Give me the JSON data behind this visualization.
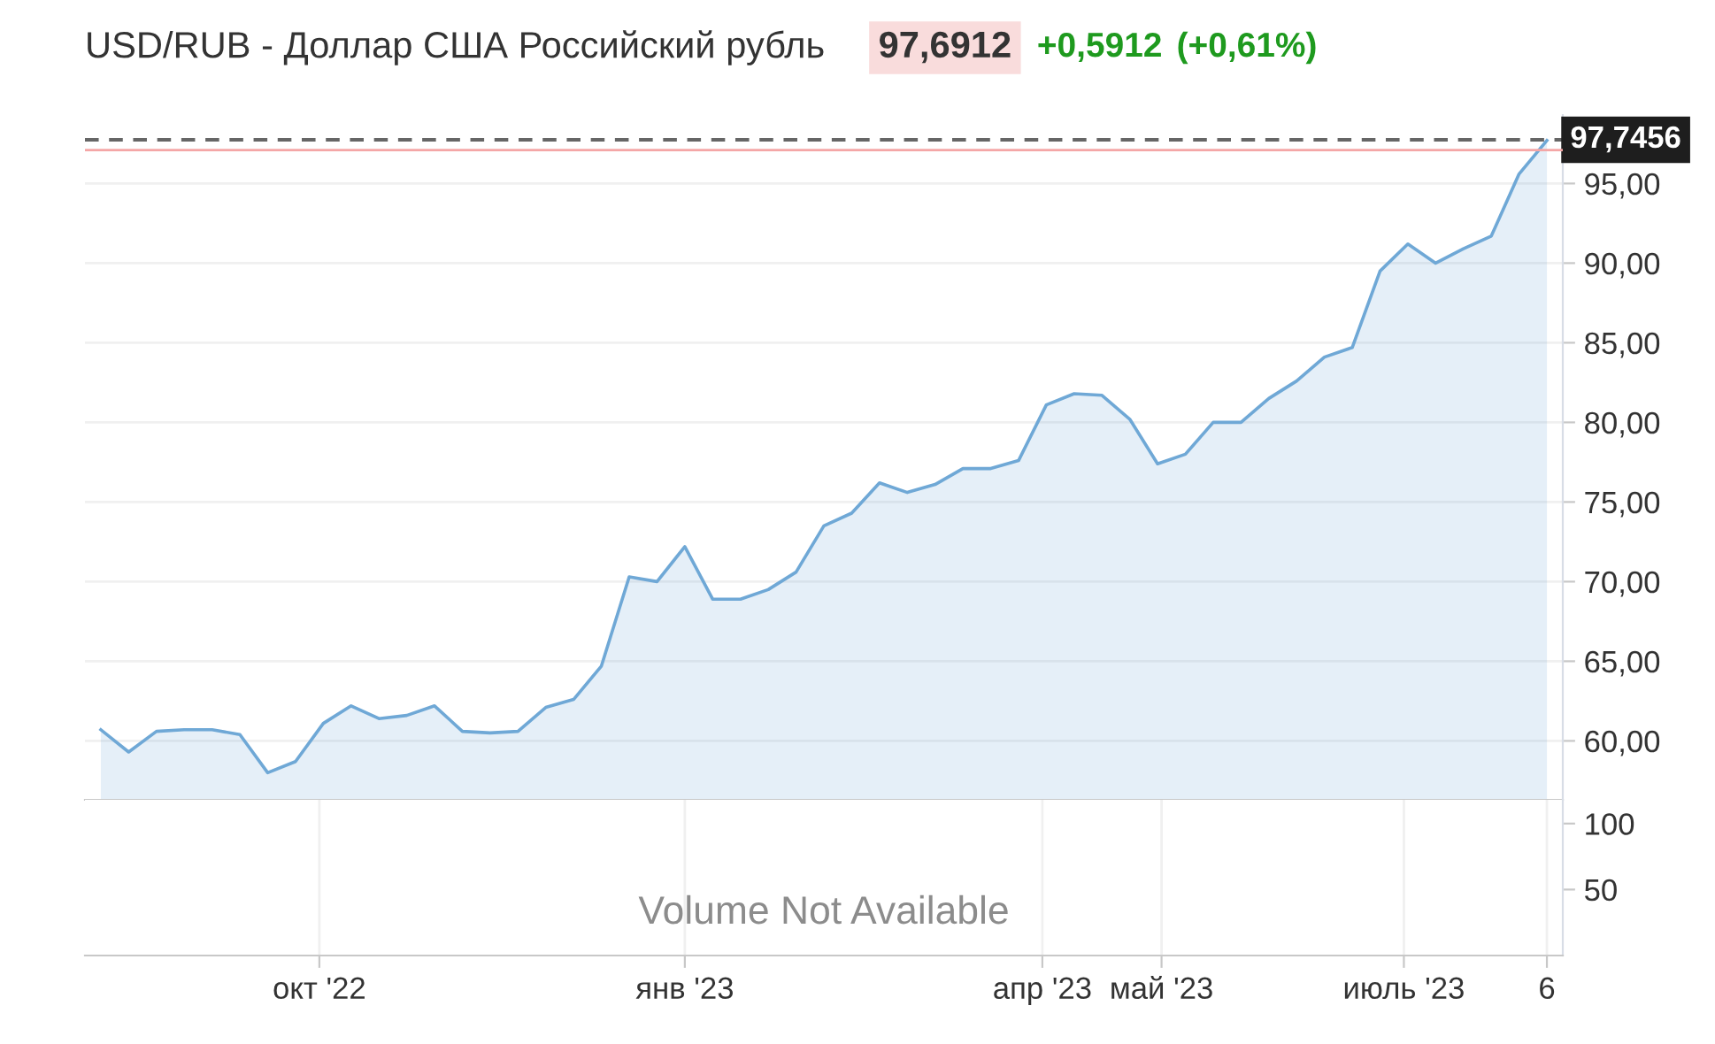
{
  "chart_data": [
    {
      "type": "area",
      "title": "USD/RUB - Доллар США Российский рубль",
      "annotations": [
        "97,6912",
        "+0,5912",
        "(+0,61%)"
      ],
      "x": [
        "2022-08-07",
        "2022-08-14",
        "2022-08-21",
        "2022-08-28",
        "2022-09-04",
        "2022-09-11",
        "2022-09-18",
        "2022-09-25",
        "2022-10-02",
        "2022-10-09",
        "2022-10-16",
        "2022-10-23",
        "2022-10-30",
        "2022-11-06",
        "2022-11-13",
        "2022-11-20",
        "2022-11-27",
        "2022-12-04",
        "2022-12-11",
        "2022-12-18",
        "2022-12-25",
        "2023-01-01",
        "2023-01-08",
        "2023-01-15",
        "2023-01-22",
        "2023-01-29",
        "2023-02-05",
        "2023-02-12",
        "2023-02-19",
        "2023-02-26",
        "2023-03-05",
        "2023-03-12",
        "2023-03-19",
        "2023-03-26",
        "2023-04-02",
        "2023-04-09",
        "2023-04-16",
        "2023-04-23",
        "2023-04-30",
        "2023-05-07",
        "2023-05-14",
        "2023-05-21",
        "2023-05-28",
        "2023-06-04",
        "2023-06-11",
        "2023-06-18",
        "2023-06-25",
        "2023-07-02",
        "2023-07-09",
        "2023-07-16",
        "2023-07-23",
        "2023-07-30",
        "2023-08-06"
      ],
      "series": [
        {
          "color": "#6fa8d6",
          "values": [
            60.7,
            59.3,
            60.6,
            60.7,
            60.7,
            60.4,
            58.0,
            58.7,
            61.1,
            62.2,
            61.4,
            61.6,
            62.2,
            60.6,
            60.5,
            60.6,
            62.1,
            62.6,
            64.7,
            70.3,
            70.0,
            72.2,
            68.9,
            68.9,
            69.5,
            70.6,
            73.5,
            74.3,
            76.2,
            75.6,
            76.1,
            77.1,
            77.1,
            77.6,
            81.1,
            81.8,
            81.7,
            80.2,
            77.4,
            78.0,
            80.0,
            80.0,
            81.5,
            82.6,
            84.1,
            84.7,
            89.5,
            91.2,
            90.0,
            90.9,
            91.7,
            95.6,
            97.7
          ]
        }
      ],
      "xlim": [
        "2022-08-03",
        "2023-08-10"
      ],
      "ylim": [
        56.3,
        99.3
      ],
      "yticks": [
        {
          "value": 60,
          "label": "60,00"
        },
        {
          "value": 65,
          "label": "65,00"
        },
        {
          "value": 70,
          "label": "70,00"
        },
        {
          "value": 75,
          "label": "75,00"
        },
        {
          "value": 80,
          "label": "80,00"
        },
        {
          "value": 85,
          "label": "85,00"
        },
        {
          "value": 90,
          "label": "90,00"
        },
        {
          "value": 95,
          "label": "95,00"
        }
      ],
      "ref_lines": [
        {
          "axis": "y",
          "value": 97.7456,
          "label": "97,7456",
          "color": "#666666",
          "line_style": "dashed"
        },
        {
          "axis": "y",
          "value": 97.1,
          "color": "#f4a6a6",
          "line_style": "solid"
        }
      ],
      "grid": true,
      "tick_labels": "y"
    },
    {
      "type": "bar",
      "annotations": [
        "Volume Not Available"
      ],
      "xlim": [
        "2022-08-03",
        "2023-08-10"
      ],
      "xticks": [
        {
          "value": "2022-10-01",
          "label": "окт '22"
        },
        {
          "value": "2023-01-01",
          "label": "янв '23"
        },
        {
          "value": "2023-04-01",
          "label": "апр '23"
        },
        {
          "value": "2023-05-01",
          "label": "май '23"
        },
        {
          "value": "2023-07-01",
          "label": "июль '23"
        },
        {
          "value": "2023-08-06",
          "label": "6"
        }
      ],
      "ylim": [
        0,
        118
      ],
      "yticks": [
        50,
        100
      ],
      "grid": "x"
    }
  ]
}
